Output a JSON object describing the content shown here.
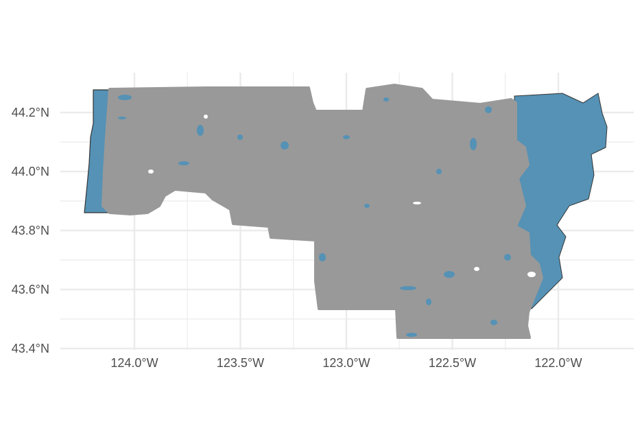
{
  "map": {
    "x_axis": {
      "ticks": [
        {
          "value": -124.0,
          "label": "124.0°W"
        },
        {
          "value": -123.5,
          "label": "123.5°W"
        },
        {
          "value": -123.0,
          "label": "123.0°W"
        },
        {
          "value": -122.5,
          "label": "122.5°W"
        },
        {
          "value": -122.0,
          "label": "122.0°W"
        }
      ]
    },
    "y_axis": {
      "ticks": [
        {
          "value": 44.2,
          "label": "44.2°N"
        },
        {
          "value": 44.0,
          "label": "44.0°N"
        },
        {
          "value": 43.8,
          "label": "43.8°N"
        },
        {
          "value": 43.6,
          "label": "43.6°N"
        },
        {
          "value": 43.4,
          "label": "43.4°N"
        }
      ]
    },
    "grid": true,
    "layers": [
      {
        "name": "water-layer",
        "color": "#5592b5"
      },
      {
        "name": "land-layer",
        "color": "#999999"
      }
    ]
  }
}
